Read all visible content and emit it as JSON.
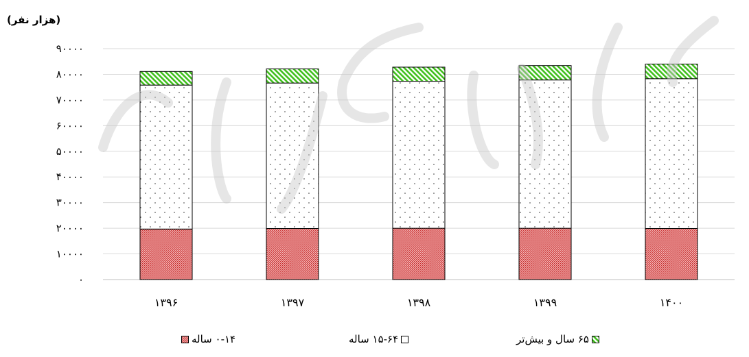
{
  "chart_data": {
    "type": "bar",
    "stacked": true,
    "unit_label": "(هزار نفر)",
    "categories": [
      "۱۳۹۶",
      "۱۳۹۷",
      "۱۳۹۸",
      "۱۳۹۹",
      "۱۴۰۰"
    ],
    "series": [
      {
        "name": "۰-۱۴ ساله",
        "values": [
          19700,
          19900,
          20000,
          20000,
          19900
        ],
        "color": "#e06060",
        "pattern": "dense-dots"
      },
      {
        "name": "۱۵-۶۴ ساله",
        "values": [
          56100,
          56700,
          57300,
          57800,
          58400
        ],
        "color": "#ffffff",
        "pattern": "sparse-dots"
      },
      {
        "name": "۶۵ سال و بیش‌تر",
        "values": [
          5300,
          5500,
          5500,
          5600,
          5700
        ],
        "color": "#44cc22",
        "pattern": "diagonal-hatch"
      }
    ],
    "ylim": [
      0,
      90000
    ],
    "yticks": [
      0,
      10000,
      20000,
      30000,
      40000,
      50000,
      60000,
      70000,
      80000,
      90000
    ],
    "ytick_labels": [
      "۰",
      "۱۰۰۰۰",
      "۲۰۰۰۰",
      "۳۰۰۰۰",
      "۴۰۰۰۰",
      "۵۰۰۰۰",
      "۶۰۰۰۰",
      "۷۰۰۰۰",
      "۸۰۰۰۰",
      "۹۰۰۰۰"
    ],
    "grid": true,
    "legend_position": "bottom"
  }
}
